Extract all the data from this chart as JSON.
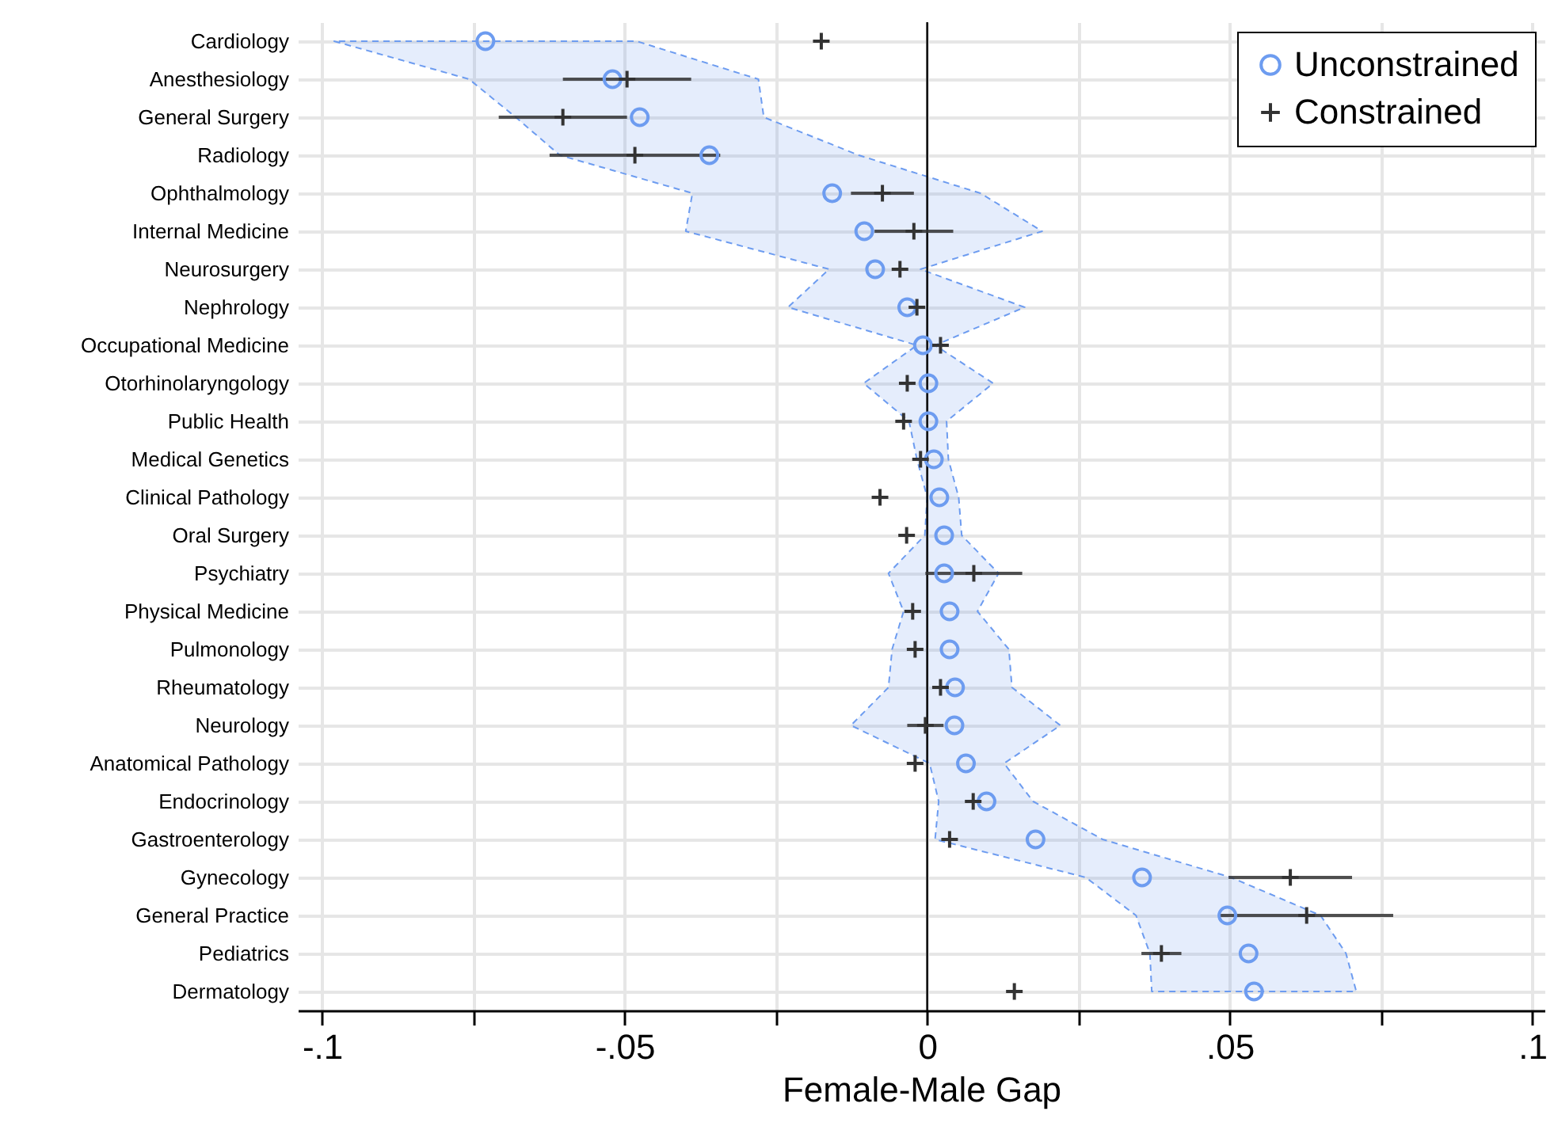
{
  "chart_data": {
    "type": "scatter",
    "orientation": "horizontal",
    "xlabel": "Female-Male Gap",
    "categories": [
      "Cardiology",
      "Anesthesiology",
      "General Surgery",
      "Radiology",
      "Ophthalmology",
      "Internal Medicine",
      "Neurosurgery",
      "Nephrology",
      "Occupational Medicine",
      "Otorhinolaryngology",
      "Public Health",
      "Medical Genetics",
      "Clinical Pathology",
      "Oral Surgery",
      "Psychiatry",
      "Physical Medicine",
      "Pulmonology",
      "Rheumatology",
      "Neurology",
      "Anatomical Pathology",
      "Endocrinology",
      "Gastroenterology",
      "Gynecology",
      "General Practice",
      "Pediatrics",
      "Dermatology"
    ],
    "series": [
      {
        "name": "Unconstrained",
        "color": "#6d9cf0",
        "marker": "circle",
        "values": [
          -0.073,
          -0.052,
          -0.0475,
          -0.036,
          -0.0157,
          -0.0104,
          -0.0086,
          -0.0033,
          -0.0007,
          0.0002,
          0.0002,
          0.0011,
          0.002,
          0.0028,
          0.0028,
          0.0037,
          0.0037,
          0.0046,
          0.0045,
          0.0064,
          0.0098,
          0.0179,
          0.0355,
          0.0496,
          0.0531,
          0.054
        ],
        "lower": [
          -0.098,
          -0.0757,
          -0.068,
          -0.0607,
          -0.0388,
          -0.0399,
          -0.0162,
          -0.023,
          -0.0017,
          -0.0105,
          -0.003,
          -0.0017,
          0.0,
          -0.0004,
          -0.0064,
          -0.0039,
          -0.0058,
          -0.0064,
          -0.0126,
          0.0004,
          0.0019,
          0.0013,
          0.0262,
          0.0345,
          0.0368,
          0.0371
        ],
        "upper": [
          -0.048,
          -0.0279,
          -0.027,
          -0.0113,
          0.0088,
          0.019,
          -0.0011,
          0.0161,
          0.0013,
          0.0109,
          0.0032,
          0.0035,
          0.0052,
          0.0057,
          0.0118,
          0.0083,
          0.0135,
          0.014,
          0.022,
          0.0127,
          0.0175,
          0.029,
          0.0502,
          0.065,
          0.0692,
          0.0709
        ]
      },
      {
        "name": "Constrained",
        "color": "#333333",
        "marker": "cross",
        "values": [
          -0.0175,
          -0.0496,
          -0.0602,
          -0.0483,
          -0.0074,
          -0.0022,
          -0.0045,
          -0.0017,
          0.0022,
          -0.0033,
          -0.0039,
          -0.0011,
          -0.0078,
          -0.0034,
          0.0077,
          -0.0024,
          -0.002,
          0.0022,
          -0.0003,
          -0.002,
          0.0076,
          0.0037,
          0.06,
          0.0627,
          0.0387,
          0.0144
        ],
        "errors": [
          null,
          0.0106,
          0.0106,
          0.0141,
          0.0052,
          0.0065,
          null,
          null,
          null,
          null,
          null,
          null,
          null,
          null,
          0.008,
          null,
          null,
          null,
          0.003,
          null,
          null,
          null,
          0.0102,
          0.0143,
          0.0033,
          null
        ]
      }
    ],
    "xlim": [
      -0.104,
      0.102
    ],
    "xticks": [
      {
        "value": -0.1,
        "label": "-.1"
      },
      {
        "value": -0.075,
        "label": null
      },
      {
        "value": -0.05,
        "label": "-.05"
      },
      {
        "value": -0.025,
        "label": null
      },
      0,
      {
        "value": 0.025,
        "label": null
      },
      {
        "value": 0.05,
        "label": ".05"
      },
      {
        "value": 0.075,
        "label": null
      },
      {
        "value": 0.1,
        "label": ".1"
      }
    ],
    "ref_lines": [
      {
        "axis": "x",
        "value": 0,
        "color": "#000000"
      }
    ],
    "grid": true,
    "legend": "top right"
  }
}
